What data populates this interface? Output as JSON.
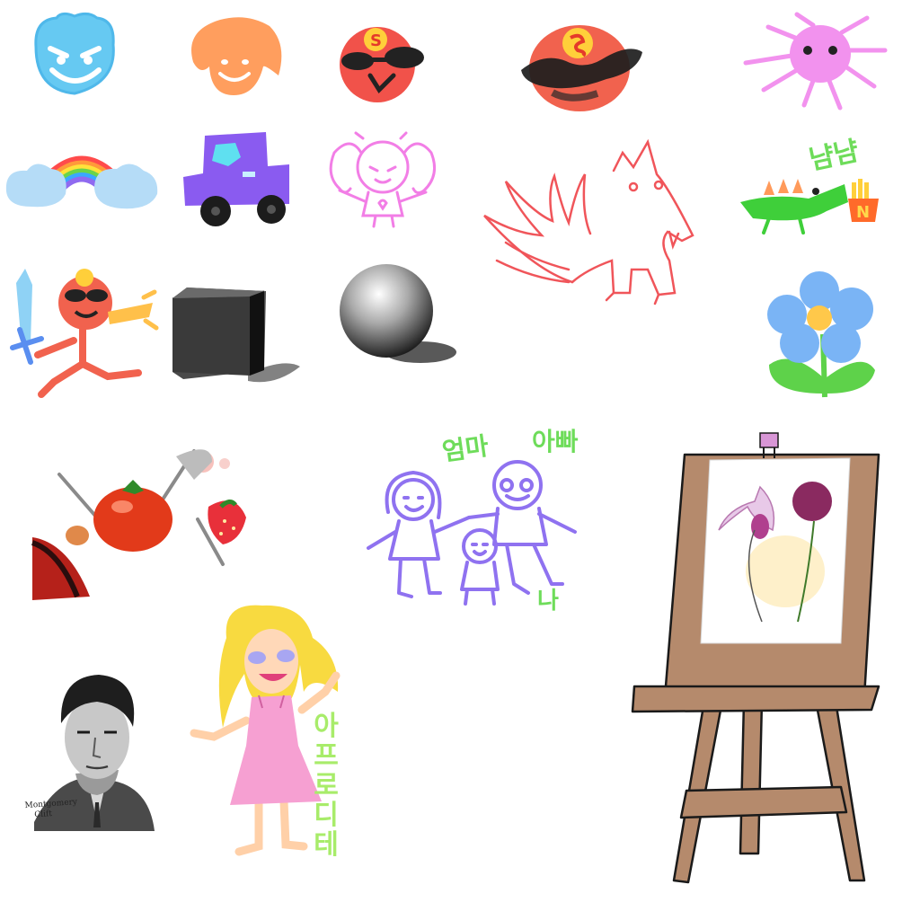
{
  "doodles": {
    "crocodile": {
      "caption": "냠냠",
      "fries_letter": "N"
    },
    "family": {
      "mom_label": "엄마",
      "dad_label": "아빠",
      "me_label": "나"
    },
    "hero": {
      "badge_letter": "S"
    },
    "portrait": {
      "signature_line1": "Montgomery",
      "signature_line2": "Clift"
    },
    "girl": {
      "vertical_caption": "아프로디테"
    }
  },
  "colors": {
    "crayon_blue": "#5fc8f0",
    "crayon_orange": "#ff9a5a",
    "crayon_red": "#f0504a",
    "crayon_pink": "#f08ee8",
    "crayon_purple": "#8f72f0",
    "crayon_green": "#5ed24a",
    "easel_wood": "#b58a6c"
  }
}
